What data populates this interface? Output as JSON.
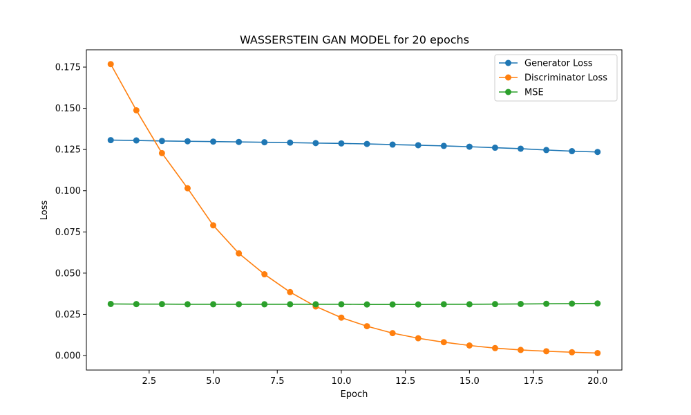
{
  "chart_data": {
    "type": "line",
    "title": "WASSERSTEIN GAN MODEL  for 20 epochs",
    "xlabel": "Epoch",
    "ylabel": "Loss",
    "x": [
      1,
      2,
      3,
      4,
      5,
      6,
      7,
      8,
      9,
      10,
      11,
      12,
      13,
      14,
      15,
      16,
      17,
      18,
      19,
      20
    ],
    "xlim": [
      0.05,
      20.95
    ],
    "ylim": [
      -0.0088,
      0.1855
    ],
    "xticks": [
      2.5,
      5.0,
      7.5,
      10.0,
      12.5,
      15.0,
      17.5,
      20.0
    ],
    "xtick_labels": [
      "2.5",
      "5.0",
      "7.5",
      "10.0",
      "12.5",
      "15.0",
      "17.5",
      "20.0"
    ],
    "yticks": [
      0.0,
      0.025,
      0.05,
      0.075,
      0.1,
      0.125,
      0.15,
      0.175
    ],
    "ytick_labels": [
      "0.000",
      "0.025",
      "0.050",
      "0.075",
      "0.100",
      "0.125",
      "0.150",
      "0.175"
    ],
    "grid": false,
    "legend_position": "top-right",
    "series": [
      {
        "name": "Generator Loss",
        "color": "#1f77b4",
        "values": [
          0.1307,
          0.1305,
          0.1302,
          0.13,
          0.1298,
          0.1296,
          0.1294,
          0.1292,
          0.1289,
          0.1287,
          0.1284,
          0.128,
          0.1276,
          0.1272,
          0.1267,
          0.1261,
          0.1255,
          0.1247,
          0.124,
          0.1235
        ]
      },
      {
        "name": "Discriminator Loss",
        "color": "#ff7f0e",
        "values": [
          0.1768,
          0.1488,
          0.1228,
          0.1015,
          0.079,
          0.062,
          0.0493,
          0.0385,
          0.0298,
          0.023,
          0.0178,
          0.0136,
          0.0105,
          0.0081,
          0.0061,
          0.0045,
          0.0034,
          0.0026,
          0.002,
          0.0015
        ]
      },
      {
        "name": "MSE",
        "color": "#2ca02c",
        "values": [
          0.0313,
          0.0312,
          0.0312,
          0.0311,
          0.0311,
          0.0311,
          0.0311,
          0.0311,
          0.0311,
          0.0311,
          0.031,
          0.031,
          0.031,
          0.0311,
          0.0311,
          0.0312,
          0.0313,
          0.0314,
          0.0315,
          0.0316
        ]
      }
    ]
  }
}
